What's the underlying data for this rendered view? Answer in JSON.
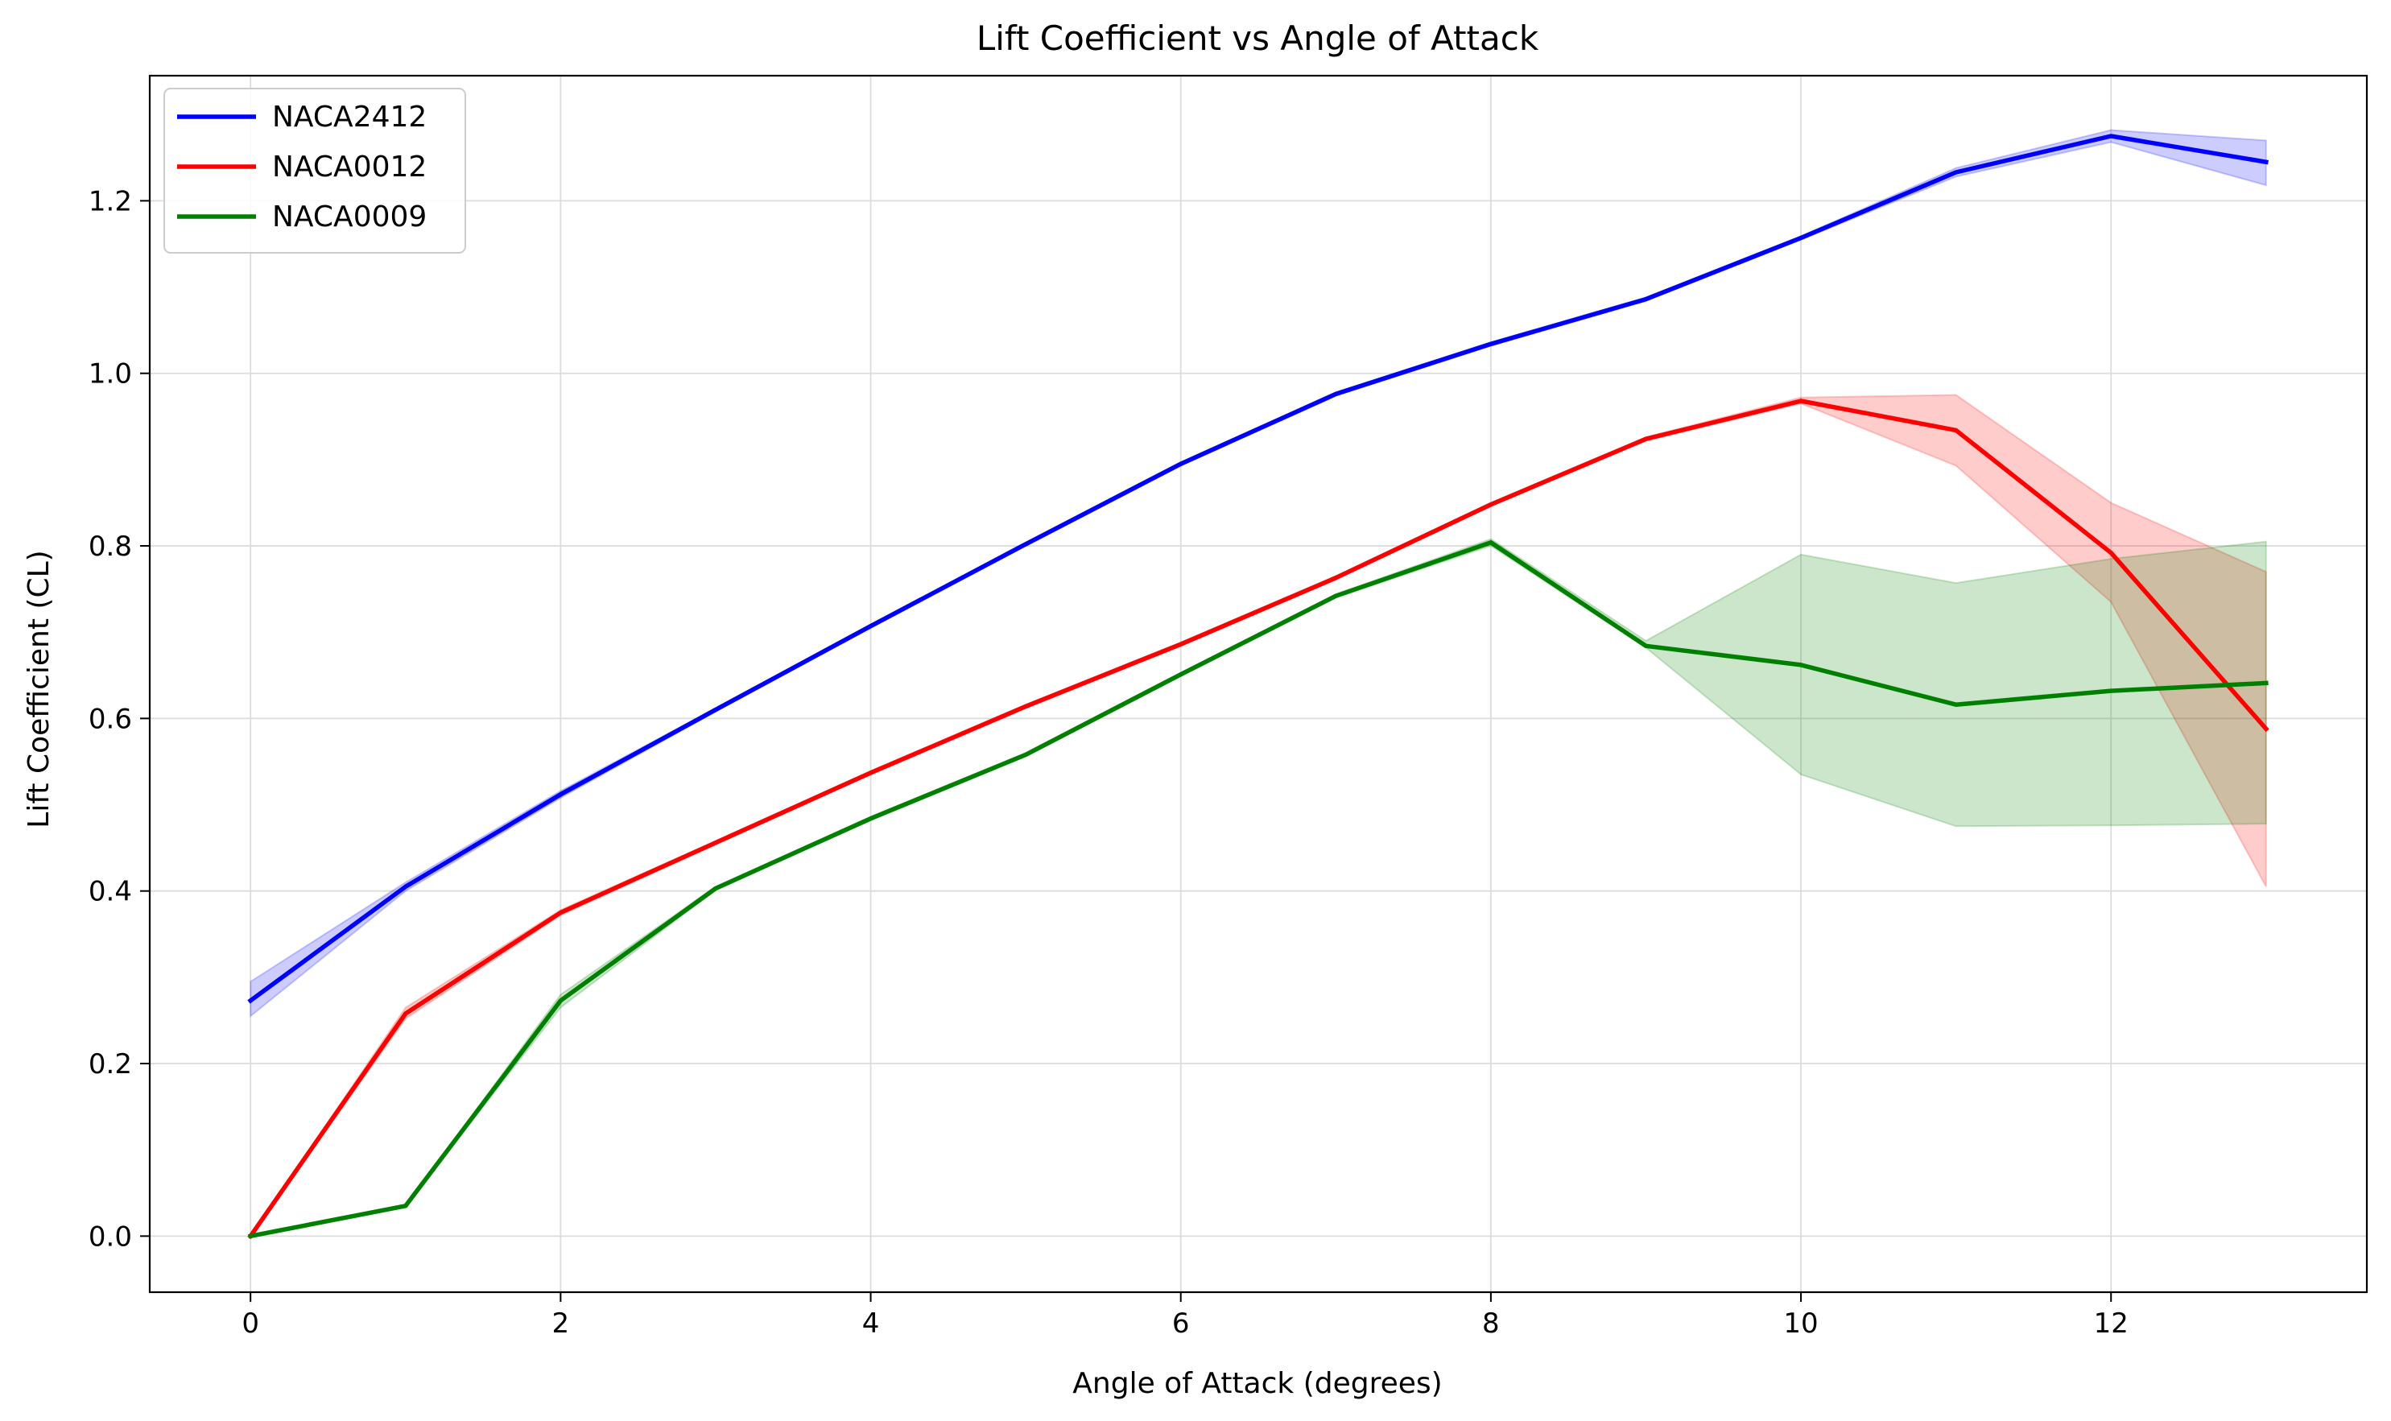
{
  "chart_data": {
    "type": "line",
    "title": "Lift Coefficient vs Angle of Attack",
    "xlabel": "Angle of Attack (degrees)",
    "ylabel": "Lift Coefficient (CL)",
    "xlim": [
      -0.65,
      13.65
    ],
    "ylim": [
      -0.065,
      1.345
    ],
    "xticks": [
      0,
      2,
      4,
      6,
      8,
      10,
      12
    ],
    "yticks": [
      0.0,
      0.2,
      0.4,
      0.6,
      0.8,
      1.0,
      1.2
    ],
    "xtick_labels": [
      "0",
      "2",
      "4",
      "6",
      "8",
      "10",
      "12"
    ],
    "ytick_labels": [
      "0.0",
      "0.2",
      "0.4",
      "0.6",
      "0.8",
      "1.0",
      "1.2"
    ],
    "grid": true,
    "legend_position": "top-left",
    "x": [
      0,
      1,
      2,
      3,
      4,
      5,
      6,
      7,
      8,
      9,
      10,
      11,
      12,
      13
    ],
    "series": [
      {
        "name": "NACA2412",
        "color": "#0000ff",
        "values": [
          0.273,
          0.405,
          0.512,
          0.61,
          0.707,
          0.802,
          0.895,
          0.976,
          1.034,
          1.086,
          1.157,
          1.233,
          1.275,
          1.245
        ],
        "lower": [
          0.255,
          0.4,
          0.508,
          0.608,
          0.705,
          0.8,
          0.893,
          0.974,
          1.032,
          1.084,
          1.155,
          1.228,
          1.268,
          1.218
        ],
        "upper": [
          0.295,
          0.41,
          0.516,
          0.612,
          0.709,
          0.804,
          0.897,
          0.978,
          1.036,
          1.088,
          1.159,
          1.238,
          1.282,
          1.27
        ]
      },
      {
        "name": "NACA0012",
        "color": "#ff0000",
        "values": [
          0.0,
          0.258,
          0.375,
          0.456,
          0.537,
          0.614,
          0.686,
          0.763,
          0.848,
          0.924,
          0.968,
          0.934,
          0.792,
          0.588
        ],
        "lower": [
          0.0,
          0.252,
          0.372,
          0.454,
          0.535,
          0.612,
          0.684,
          0.761,
          0.846,
          0.922,
          0.965,
          0.893,
          0.735,
          0.405
        ],
        "upper": [
          0.0,
          0.265,
          0.378,
          0.458,
          0.539,
          0.616,
          0.688,
          0.765,
          0.85,
          0.926,
          0.972,
          0.975,
          0.85,
          0.77
        ]
      },
      {
        "name": "NACA0009",
        "color": "#008000",
        "values": [
          0.0,
          0.035,
          0.273,
          0.403,
          0.484,
          0.558,
          0.651,
          0.742,
          0.804,
          0.684,
          0.662,
          0.616,
          0.632,
          0.641
        ],
        "lower": [
          0.0,
          0.035,
          0.265,
          0.401,
          0.482,
          0.556,
          0.649,
          0.74,
          0.8,
          0.682,
          0.535,
          0.475,
          0.476,
          0.478
        ],
        "upper": [
          0.0,
          0.035,
          0.28,
          0.405,
          0.486,
          0.56,
          0.653,
          0.744,
          0.808,
          0.69,
          0.79,
          0.757,
          0.785,
          0.805
        ]
      }
    ]
  }
}
